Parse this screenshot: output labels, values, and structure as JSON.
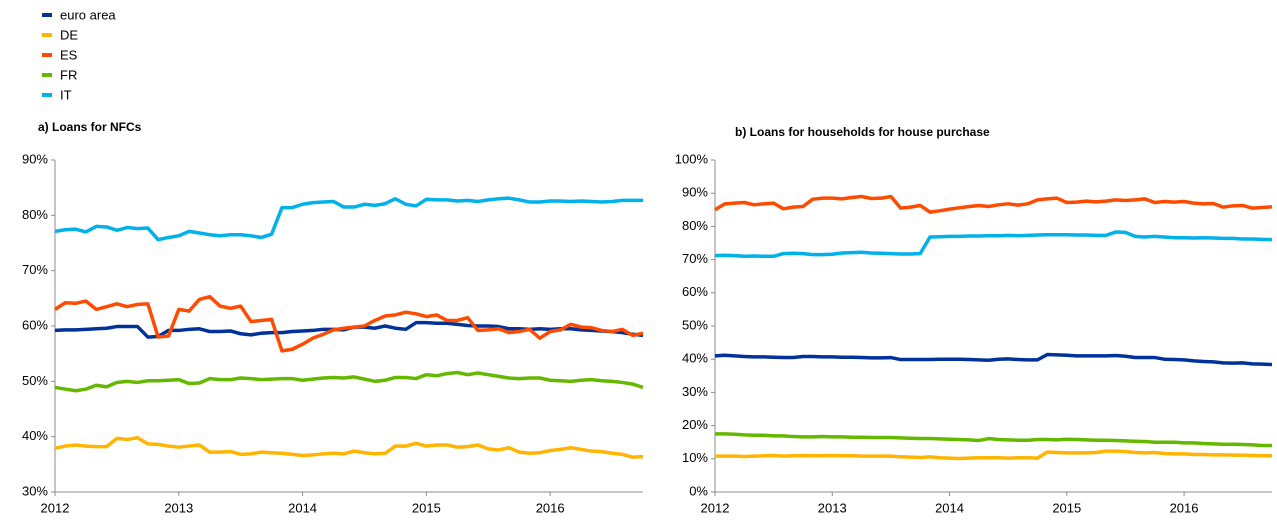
{
  "chart_data": [
    {
      "type": "line",
      "title": "a) Loans for NFCs",
      "categories": [
        "2012",
        null,
        null,
        null,
        null,
        null,
        null,
        null,
        null,
        null,
        null,
        null,
        "2013",
        null,
        null,
        null,
        null,
        null,
        null,
        null,
        null,
        null,
        null,
        null,
        "2014",
        null,
        null,
        null,
        null,
        null,
        null,
        null,
        null,
        null,
        null,
        null,
        "2015",
        null,
        null,
        null,
        null,
        null,
        null,
        null,
        null,
        null,
        null,
        null,
        "2016",
        null,
        null,
        null,
        null,
        null,
        null,
        null,
        null,
        null
      ],
      "ylim": [
        30,
        90
      ],
      "yticks": [
        {
          "value": 30,
          "label": "30%"
        },
        {
          "value": 40,
          "label": "40%"
        },
        {
          "value": 50,
          "label": "50%"
        },
        {
          "value": 60,
          "label": "60%"
        },
        {
          "value": 70,
          "label": "70%"
        },
        {
          "value": 80,
          "label": "80%"
        },
        {
          "value": 90,
          "label": "90%"
        }
      ],
      "grid": false,
      "series": [
        {
          "name": "euro area",
          "color": "#003299",
          "values": [
            59.2,
            59.3,
            59.3,
            59.4,
            59.5,
            59.6,
            59.9,
            59.9,
            59.9,
            58.0,
            58.1,
            59.2,
            59.2,
            59.4,
            59.5,
            59.0,
            59.0,
            59.1,
            58.6,
            58.4,
            58.7,
            58.8,
            58.8,
            59.0,
            59.1,
            59.2,
            59.4,
            59.4,
            59.3,
            59.8,
            59.8,
            59.6,
            60.0,
            59.6,
            59.4,
            60.6,
            60.6,
            60.5,
            60.5,
            60.3,
            60.1,
            60.0,
            60.0,
            59.9,
            59.5,
            59.5,
            59.4,
            59.5,
            59.4,
            59.5,
            59.5,
            59.3,
            59.2,
            59.1,
            59.0,
            58.8,
            58.5,
            58.3
          ]
        },
        {
          "name": "DE",
          "color": "#ffb400",
          "values": [
            37.9,
            38.3,
            38.5,
            38.3,
            38.2,
            38.2,
            39.7,
            39.5,
            39.8,
            38.7,
            38.6,
            38.3,
            38.1,
            38.3,
            38.5,
            37.2,
            37.2,
            37.3,
            36.8,
            36.9,
            37.2,
            37.1,
            37.0,
            36.8,
            36.6,
            36.7,
            36.9,
            37.0,
            36.9,
            37.4,
            37.1,
            36.9,
            37.0,
            38.3,
            38.3,
            38.8,
            38.3,
            38.5,
            38.5,
            38.1,
            38.2,
            38.5,
            37.8,
            37.6,
            38.0,
            37.2,
            37.0,
            37.1,
            37.5,
            37.7,
            38.0,
            37.7,
            37.4,
            37.3,
            37.0,
            36.8,
            36.3,
            36.4
          ]
        },
        {
          "name": "ES",
          "color": "#ff4b00",
          "values": [
            63.0,
            64.2,
            64.1,
            64.5,
            63.0,
            63.5,
            64.0,
            63.5,
            63.9,
            64.0,
            58.0,
            58.2,
            63.0,
            62.7,
            64.8,
            65.3,
            63.6,
            63.2,
            63.6,
            60.8,
            61.0,
            61.2,
            55.5,
            55.8,
            56.7,
            57.8,
            58.5,
            59.3,
            59.6,
            59.8,
            60.0,
            61.0,
            61.8,
            62.0,
            62.5,
            62.2,
            61.7,
            62.0,
            61.0,
            61.0,
            61.5,
            59.2,
            59.3,
            59.5,
            58.8,
            59.0,
            59.4,
            57.8,
            59.0,
            59.3,
            60.3,
            59.8,
            59.7,
            59.2,
            59.0,
            59.4,
            58.3,
            58.7
          ]
        },
        {
          "name": "FR",
          "color": "#65b800",
          "values": [
            48.9,
            48.6,
            48.3,
            48.6,
            49.3,
            49.0,
            49.8,
            50.0,
            49.8,
            50.1,
            50.1,
            50.2,
            50.3,
            49.6,
            49.7,
            50.5,
            50.3,
            50.3,
            50.6,
            50.5,
            50.3,
            50.4,
            50.5,
            50.5,
            50.2,
            50.4,
            50.6,
            50.7,
            50.6,
            50.8,
            50.4,
            50.0,
            50.2,
            50.7,
            50.7,
            50.5,
            51.2,
            51.0,
            51.4,
            51.6,
            51.2,
            51.5,
            51.2,
            50.9,
            50.6,
            50.5,
            50.6,
            50.6,
            50.2,
            50.1,
            50.0,
            50.2,
            50.3,
            50.1,
            50.0,
            49.8,
            49.5,
            48.9
          ]
        },
        {
          "name": "IT",
          "color": "#00b1ea",
          "values": [
            77.1,
            77.4,
            77.5,
            77.0,
            78.0,
            77.9,
            77.3,
            77.8,
            77.6,
            77.7,
            75.6,
            76.0,
            76.3,
            77.1,
            76.8,
            76.5,
            76.3,
            76.5,
            76.5,
            76.3,
            76.0,
            76.6,
            81.4,
            81.4,
            82.0,
            82.3,
            82.4,
            82.5,
            81.5,
            81.5,
            82.0,
            81.8,
            82.1,
            83.0,
            82.0,
            81.7,
            82.9,
            82.8,
            82.8,
            82.6,
            82.7,
            82.5,
            82.8,
            83.0,
            83.1,
            82.8,
            82.4,
            82.4,
            82.6,
            82.6,
            82.5,
            82.6,
            82.5,
            82.4,
            82.5,
            82.7,
            82.7,
            82.7
          ]
        }
      ]
    },
    {
      "type": "line",
      "title": "b) Loans for households for house purchase",
      "categories": [
        "2012",
        null,
        null,
        null,
        null,
        null,
        null,
        null,
        null,
        null,
        null,
        null,
        "2013",
        null,
        null,
        null,
        null,
        null,
        null,
        null,
        null,
        null,
        null,
        null,
        "2014",
        null,
        null,
        null,
        null,
        null,
        null,
        null,
        null,
        null,
        null,
        null,
        "2015",
        null,
        null,
        null,
        null,
        null,
        null,
        null,
        null,
        null,
        null,
        null,
        "2016",
        null,
        null,
        null,
        null,
        null,
        null,
        null,
        null,
        null
      ],
      "ylim": [
        0,
        100
      ],
      "yticks": [
        {
          "value": 0,
          "label": "0%"
        },
        {
          "value": 10,
          "label": "10%"
        },
        {
          "value": 20,
          "label": "20%"
        },
        {
          "value": 30,
          "label": "30%"
        },
        {
          "value": 40,
          "label": "40%"
        },
        {
          "value": 50,
          "label": "50%"
        },
        {
          "value": 60,
          "label": "60%"
        },
        {
          "value": 70,
          "label": "70%"
        },
        {
          "value": 80,
          "label": "80%"
        },
        {
          "value": 90,
          "label": "90%"
        },
        {
          "value": 100,
          "label": "100%"
        }
      ],
      "grid": false,
      "series": [
        {
          "name": "euro area",
          "color": "#003299",
          "values": [
            41.0,
            41.2,
            41.0,
            40.8,
            40.7,
            40.7,
            40.6,
            40.5,
            40.5,
            40.8,
            40.8,
            40.7,
            40.7,
            40.6,
            40.6,
            40.5,
            40.4,
            40.4,
            40.5,
            39.9,
            39.9,
            39.9,
            39.9,
            40.0,
            40.0,
            40.0,
            39.9,
            39.8,
            39.7,
            40.0,
            40.1,
            39.9,
            39.8,
            39.8,
            41.4,
            41.3,
            41.2,
            41.0,
            41.0,
            41.0,
            41.0,
            41.1,
            40.9,
            40.5,
            40.5,
            40.5,
            40.0,
            39.9,
            39.8,
            39.5,
            39.3,
            39.2,
            38.9,
            38.8,
            38.9,
            38.6,
            38.5,
            38.4
          ]
        },
        {
          "name": "DE",
          "color": "#ffb400",
          "values": [
            10.8,
            10.8,
            10.8,
            10.7,
            10.8,
            10.9,
            11.0,
            10.8,
            10.9,
            11.0,
            10.9,
            10.9,
            11.0,
            10.9,
            10.9,
            10.8,
            10.8,
            10.8,
            10.8,
            10.6,
            10.5,
            10.4,
            10.6,
            10.3,
            10.2,
            10.1,
            10.2,
            10.3,
            10.3,
            10.3,
            10.2,
            10.3,
            10.3,
            10.2,
            12.0,
            11.9,
            11.8,
            11.8,
            11.8,
            11.9,
            12.3,
            12.3,
            12.2,
            11.9,
            11.8,
            11.9,
            11.6,
            11.5,
            11.5,
            11.3,
            11.3,
            11.2,
            11.2,
            11.1,
            11.1,
            11.0,
            10.9,
            10.9
          ]
        },
        {
          "name": "ES",
          "color": "#ff4b00",
          "values": [
            85.0,
            86.8,
            87.0,
            87.2,
            86.5,
            86.8,
            87.0,
            85.3,
            85.8,
            86.0,
            88.2,
            88.5,
            88.5,
            88.3,
            88.7,
            89.0,
            88.4,
            88.5,
            89.0,
            85.5,
            85.8,
            86.3,
            84.3,
            84.7,
            85.2,
            85.6,
            86.0,
            86.3,
            86.0,
            86.5,
            86.8,
            86.4,
            86.8,
            88.0,
            88.3,
            88.5,
            87.2,
            87.3,
            87.6,
            87.4,
            87.6,
            88.0,
            87.8,
            88.0,
            88.3,
            87.2,
            87.5,
            87.3,
            87.5,
            87.0,
            86.8,
            86.9,
            85.8,
            86.2,
            86.3,
            85.5,
            85.7,
            85.9
          ]
        },
        {
          "name": "FR",
          "color": "#65b800",
          "values": [
            17.5,
            17.5,
            17.4,
            17.2,
            17.1,
            17.1,
            16.9,
            16.9,
            16.7,
            16.6,
            16.6,
            16.7,
            16.6,
            16.6,
            16.5,
            16.5,
            16.4,
            16.4,
            16.4,
            16.3,
            16.2,
            16.1,
            16.1,
            16.0,
            15.9,
            15.8,
            15.7,
            15.5,
            16.1,
            15.8,
            15.7,
            15.6,
            15.6,
            15.8,
            15.8,
            15.7,
            15.9,
            15.8,
            15.7,
            15.6,
            15.6,
            15.5,
            15.4,
            15.3,
            15.2,
            15.0,
            15.0,
            15.0,
            14.8,
            14.8,
            14.6,
            14.5,
            14.4,
            14.4,
            14.3,
            14.2,
            14.0,
            14.0
          ]
        },
        {
          "name": "IT",
          "color": "#00b1ea",
          "values": [
            71.2,
            71.3,
            71.2,
            71.0,
            71.1,
            71.0,
            71.0,
            71.8,
            71.9,
            71.8,
            71.5,
            71.5,
            71.6,
            72.0,
            72.1,
            72.2,
            72.0,
            71.9,
            71.8,
            71.7,
            71.7,
            71.8,
            76.8,
            76.9,
            77.0,
            77.0,
            77.1,
            77.1,
            77.2,
            77.2,
            77.3,
            77.2,
            77.3,
            77.4,
            77.5,
            77.5,
            77.5,
            77.4,
            77.4,
            77.3,
            77.3,
            78.3,
            78.2,
            77.0,
            76.8,
            77.0,
            76.8,
            76.6,
            76.6,
            76.5,
            76.6,
            76.5,
            76.4,
            76.4,
            76.2,
            76.2,
            76.1,
            76.0
          ]
        }
      ]
    }
  ]
}
